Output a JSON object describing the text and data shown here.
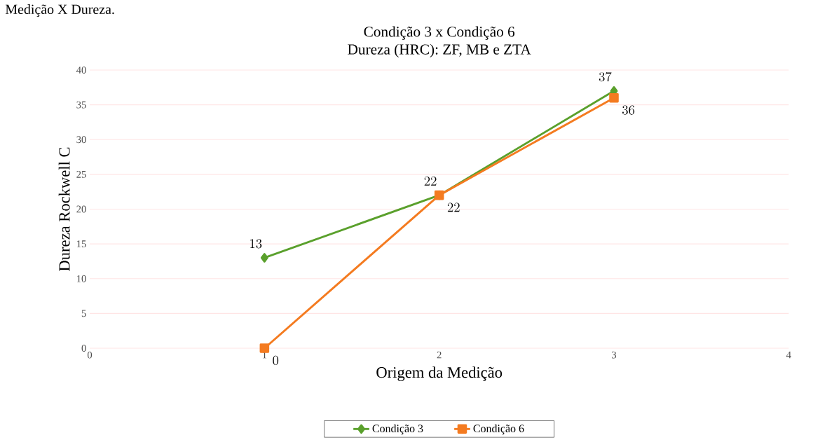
{
  "chart_data": {
    "type": "line",
    "title": "Condição 3 x Condição 6",
    "subtitle": "Dureza (HRC): ZF, MB e ZTA",
    "xlabel": "Origem da Medição",
    "ylabel": "Dureza Rockwell C",
    "annotations": [
      "Medição X Dureza."
    ],
    "x": [
      1,
      2,
      3
    ],
    "series": [
      {
        "name": "Condição 3",
        "color": "#5aa02c",
        "marker": "diamond",
        "values": [
          13,
          22,
          37
        ]
      },
      {
        "name": "Condição 6",
        "color": "#f47b20",
        "marker": "square",
        "values": [
          0,
          22,
          36
        ]
      }
    ],
    "xlim": [
      0,
      4
    ],
    "xticks": [
      0,
      1,
      2,
      3,
      4
    ],
    "ylim": [
      0,
      40
    ],
    "yticks": [
      0,
      5,
      10,
      15,
      20,
      25,
      30,
      35,
      40
    ],
    "grid": "y",
    "legend": "bottom",
    "data_labels": true
  }
}
